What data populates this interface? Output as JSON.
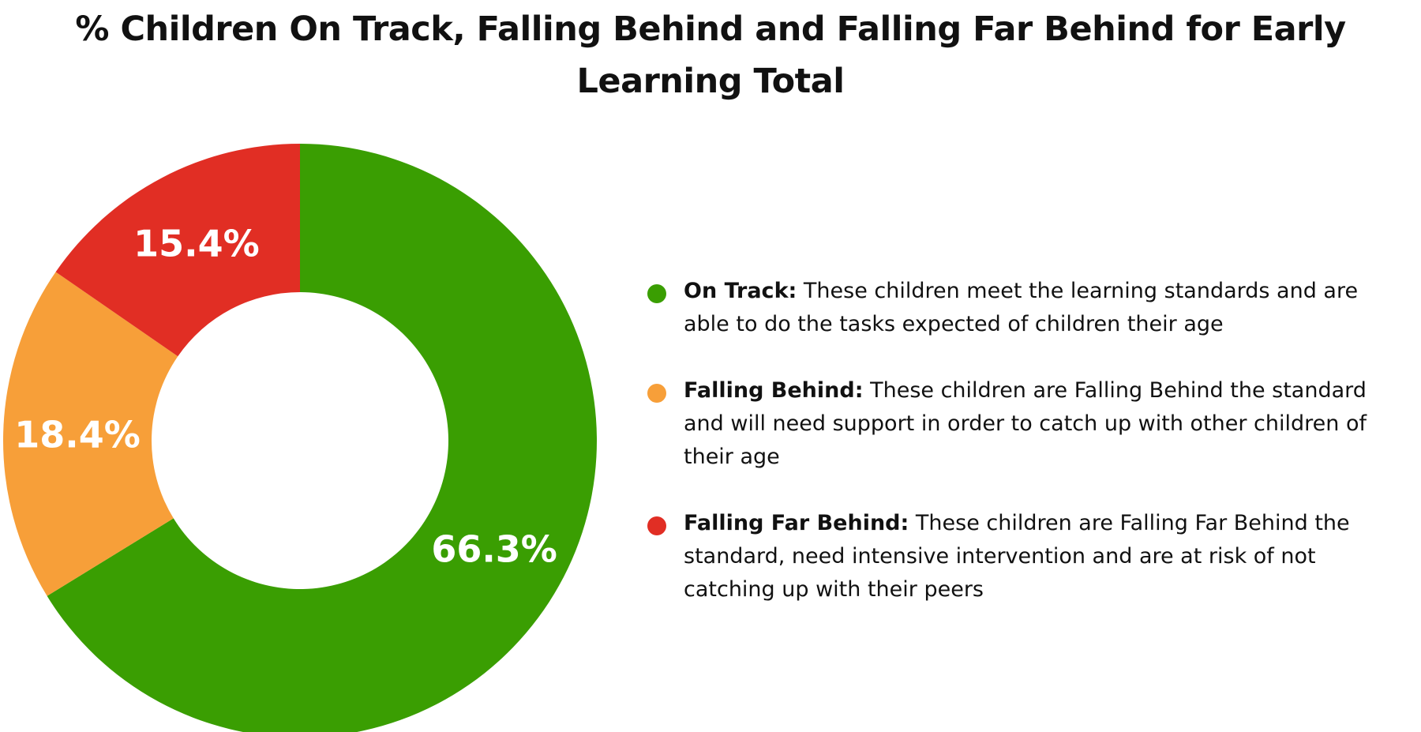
{
  "chart_data": {
    "type": "pie",
    "title": "% Children On Track, Falling Behind and Falling Far Behind for Early Learning Total",
    "donut": true,
    "legend_position": "right",
    "slices": [
      {
        "name": "On Track",
        "value": 66.3,
        "label": "66.3%",
        "color": "#3a9e02"
      },
      {
        "name": "Falling Behind",
        "value": 18.4,
        "label": "18.4%",
        "color": "#f79f39"
      },
      {
        "name": "Falling Far Behind",
        "value": 15.4,
        "label": "15.4%",
        "color": "#e12e24"
      }
    ],
    "legend": [
      {
        "name": "On Track:",
        "description": "These children meet the learning standards and are able to do the tasks expected of children their age",
        "color": "#3a9e02"
      },
      {
        "name": "Falling Behind:",
        "description": "These children are Falling Behind the standard and will need support in order to catch up with other children of their age",
        "color": "#f79f39"
      },
      {
        "name": "Falling Far Behind:",
        "description": "These children are Falling Far Behind the standard, need intensive intervention and are at risk of not catching up with their peers",
        "color": "#e12e24"
      }
    ]
  }
}
